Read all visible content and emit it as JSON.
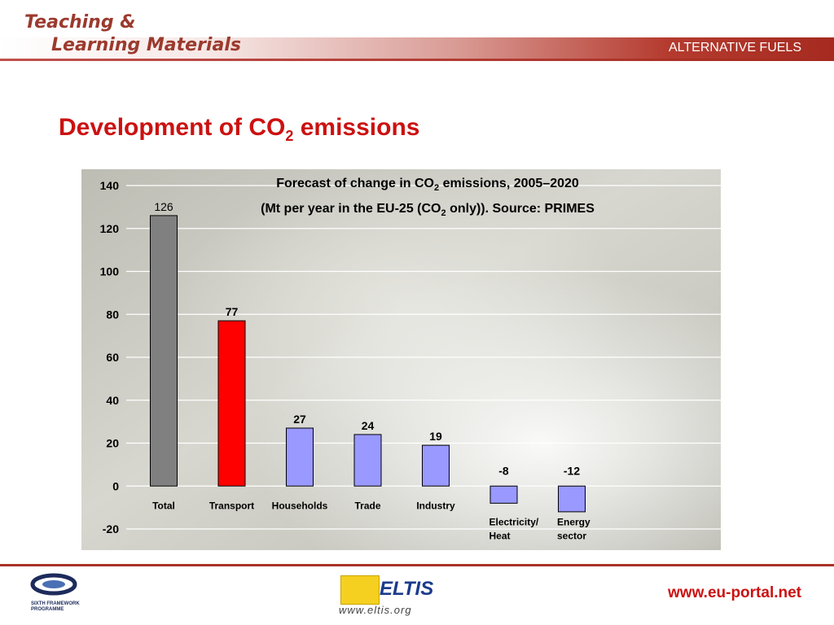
{
  "header": {
    "logo_line1": "Teaching &",
    "logo_line2": "Learning Materials",
    "section": "ALTERNATIVE FUELS"
  },
  "slide": {
    "title_main": "Development of CO",
    "title_sub": "2",
    "title_end": " emissions"
  },
  "chart_data": {
    "type": "bar",
    "title_line1": {
      "a": "Forecast of change in CO",
      "sub": "2",
      "b": " emissions, 2005–2020"
    },
    "title_line2": {
      "a": "(Mt per year in the EU-25 (CO",
      "sub": "2",
      "b": " only)). Source: PRIMES"
    },
    "categories": [
      [
        "Total"
      ],
      [
        "Transport"
      ],
      [
        "Households"
      ],
      [
        "Trade"
      ],
      [
        "Industry"
      ],
      [
        "Electricity/",
        "Heat"
      ],
      [
        "Energy",
        "sector"
      ]
    ],
    "values": [
      126,
      77,
      27,
      24,
      19,
      -8,
      -12
    ],
    "bar_colors": [
      "#808080",
      "#ff0000",
      "#9999ff",
      "#9999ff",
      "#9999ff",
      "#9999ff",
      "#9999ff"
    ],
    "ylim": [
      -20,
      140
    ],
    "yticks": [
      -20,
      0,
      20,
      40,
      60,
      80,
      100,
      120,
      140
    ],
    "grid": true,
    "xlabel": "",
    "ylabel": ""
  },
  "footer": {
    "fp6_line1": "SIXTH FRAMEWORK",
    "fp6_line2": "PROGRAMME",
    "eltis": "ELTIS",
    "eltis_url": "www.eltis.org",
    "portal": "www.eu-portal.net"
  }
}
